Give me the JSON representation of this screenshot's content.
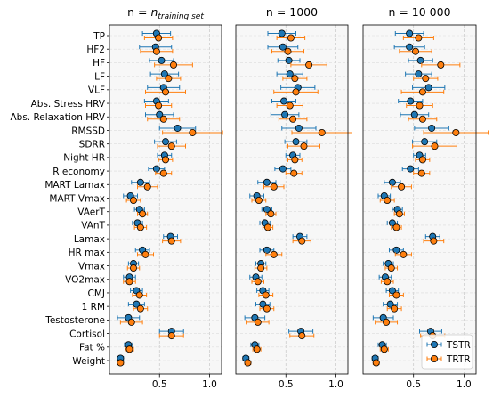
{
  "chart_data": {
    "type": "scatter",
    "subtype": "dot-and-whisker",
    "panels": [
      {
        "title_prefix": "n = ",
        "title_sub": "n",
        "title_subscript": "training set"
      },
      {
        "title_prefix": "n = 1000"
      },
      {
        "title_prefix": "n = 10 000"
      }
    ],
    "categories": [
      "TP",
      "HF2",
      "HF",
      "LF",
      "VLF",
      "Abs. Stress HRV",
      "Abs. Relaxation HRV",
      "RMSSD",
      "SDRR",
      "Night HR",
      "R economy",
      "MART Lamax",
      "MART Vmax",
      "VAerT",
      "VAnT",
      "Lamax",
      "HR max",
      "Vmax",
      "VO2max",
      "CMJ",
      "1 RM",
      "Testosterone",
      "Cortisol",
      "Fat %",
      "Weight"
    ],
    "xlim": [
      0.0,
      1.12
    ],
    "xticks": [
      "0.5",
      "1.0"
    ],
    "grid": true,
    "legend": {
      "position": "bottom-right",
      "entries": [
        "TSTR",
        "TRTR"
      ]
    },
    "colors": {
      "TSTR": "#1f77b4",
      "TRTR": "#ff7f0e"
    },
    "series": [
      {
        "name": "TSTR",
        "panels": [
          {
            "values": [
              0.47,
              0.46,
              0.52,
              0.55,
              0.54,
              0.47,
              0.5,
              0.68,
              0.56,
              0.55,
              0.47,
              0.31,
              0.21,
              0.3,
              0.28,
              0.61,
              0.33,
              0.24,
              0.2,
              0.27,
              0.27,
              0.19,
              0.62,
              0.19,
              0.11
            ],
            "err": [
              0.14,
              0.16,
              0.12,
              0.14,
              0.16,
              0.12,
              0.14,
              0.18,
              0.11,
              0.07,
              0.08,
              0.09,
              0.07,
              0.05,
              0.05,
              0.07,
              0.07,
              0.05,
              0.06,
              0.06,
              0.08,
              0.11,
              0.12,
              0.04,
              0.03
            ]
          },
          {
            "values": [
              0.46,
              0.47,
              0.53,
              0.54,
              0.62,
              0.48,
              0.49,
              0.63,
              0.6,
              0.57,
              0.47,
              0.31,
              0.21,
              0.31,
              0.29,
              0.64,
              0.31,
              0.25,
              0.2,
              0.27,
              0.27,
              0.19,
              0.65,
              0.19,
              0.1
            ],
            "err": [
              0.14,
              0.15,
              0.11,
              0.13,
              0.17,
              0.12,
              0.14,
              0.17,
              0.11,
              0.07,
              0.08,
              0.09,
              0.07,
              0.05,
              0.05,
              0.07,
              0.07,
              0.05,
              0.06,
              0.06,
              0.07,
              0.1,
              0.12,
              0.04,
              0.03
            ]
          },
          {
            "values": [
              0.46,
              0.46,
              0.57,
              0.55,
              0.65,
              0.47,
              0.51,
              0.68,
              0.61,
              0.56,
              0.47,
              0.29,
              0.21,
              0.34,
              0.29,
              0.69,
              0.33,
              0.25,
              0.22,
              0.29,
              0.27,
              0.2,
              0.67,
              0.19,
              0.12
            ],
            "err": [
              0.14,
              0.15,
              0.12,
              0.13,
              0.16,
              0.12,
              0.14,
              0.17,
              0.12,
              0.06,
              0.08,
              0.08,
              0.06,
              0.05,
              0.05,
              0.07,
              0.07,
              0.05,
              0.06,
              0.06,
              0.07,
              0.1,
              0.11,
              0.04,
              0.03
            ]
          }
        ]
      },
      {
        "name": "TRTR",
        "panels": [
          {
            "values": [
              0.49,
              0.47,
              0.64,
              0.59,
              0.56,
              0.49,
              0.54,
              0.83,
              0.62,
              0.56,
              0.54,
              0.38,
              0.24,
              0.33,
              0.31,
              0.62,
              0.36,
              0.24,
              0.2,
              0.3,
              0.31,
              0.22,
              0.62,
              0.2,
              0.11
            ],
            "err": [
              0.14,
              0.16,
              0.19,
              0.12,
              0.2,
              0.13,
              0.16,
              0.3,
              0.14,
              0.07,
              0.08,
              0.1,
              0.07,
              0.05,
              0.06,
              0.09,
              0.08,
              0.06,
              0.06,
              0.07,
              0.07,
              0.11,
              0.12,
              0.04,
              0.03
            ]
          },
          {
            "values": [
              0.55,
              0.52,
              0.73,
              0.59,
              0.6,
              0.54,
              0.57,
              0.86,
              0.68,
              0.59,
              0.58,
              0.38,
              0.23,
              0.35,
              0.32,
              0.66,
              0.38,
              0.25,
              0.22,
              0.3,
              0.31,
              0.22,
              0.66,
              0.21,
              0.12
            ],
            "err": [
              0.14,
              0.16,
              0.18,
              0.12,
              0.22,
              0.13,
              0.14,
              0.3,
              0.16,
              0.07,
              0.08,
              0.1,
              0.07,
              0.05,
              0.05,
              0.09,
              0.08,
              0.06,
              0.06,
              0.07,
              0.07,
              0.11,
              0.12,
              0.04,
              0.03
            ]
          },
          {
            "values": [
              0.55,
              0.52,
              0.77,
              0.62,
              0.59,
              0.56,
              0.59,
              0.92,
              0.71,
              0.59,
              0.58,
              0.38,
              0.24,
              0.36,
              0.33,
              0.7,
              0.4,
              0.28,
              0.24,
              0.33,
              0.31,
              0.23,
              0.69,
              0.21,
              0.13
            ],
            "err": [
              0.15,
              0.16,
              0.19,
              0.12,
              0.21,
              0.13,
              0.14,
              0.32,
              0.22,
              0.07,
              0.08,
              0.1,
              0.07,
              0.05,
              0.05,
              0.1,
              0.08,
              0.06,
              0.06,
              0.07,
              0.07,
              0.11,
              0.12,
              0.04,
              0.03
            ]
          }
        ]
      }
    ]
  }
}
